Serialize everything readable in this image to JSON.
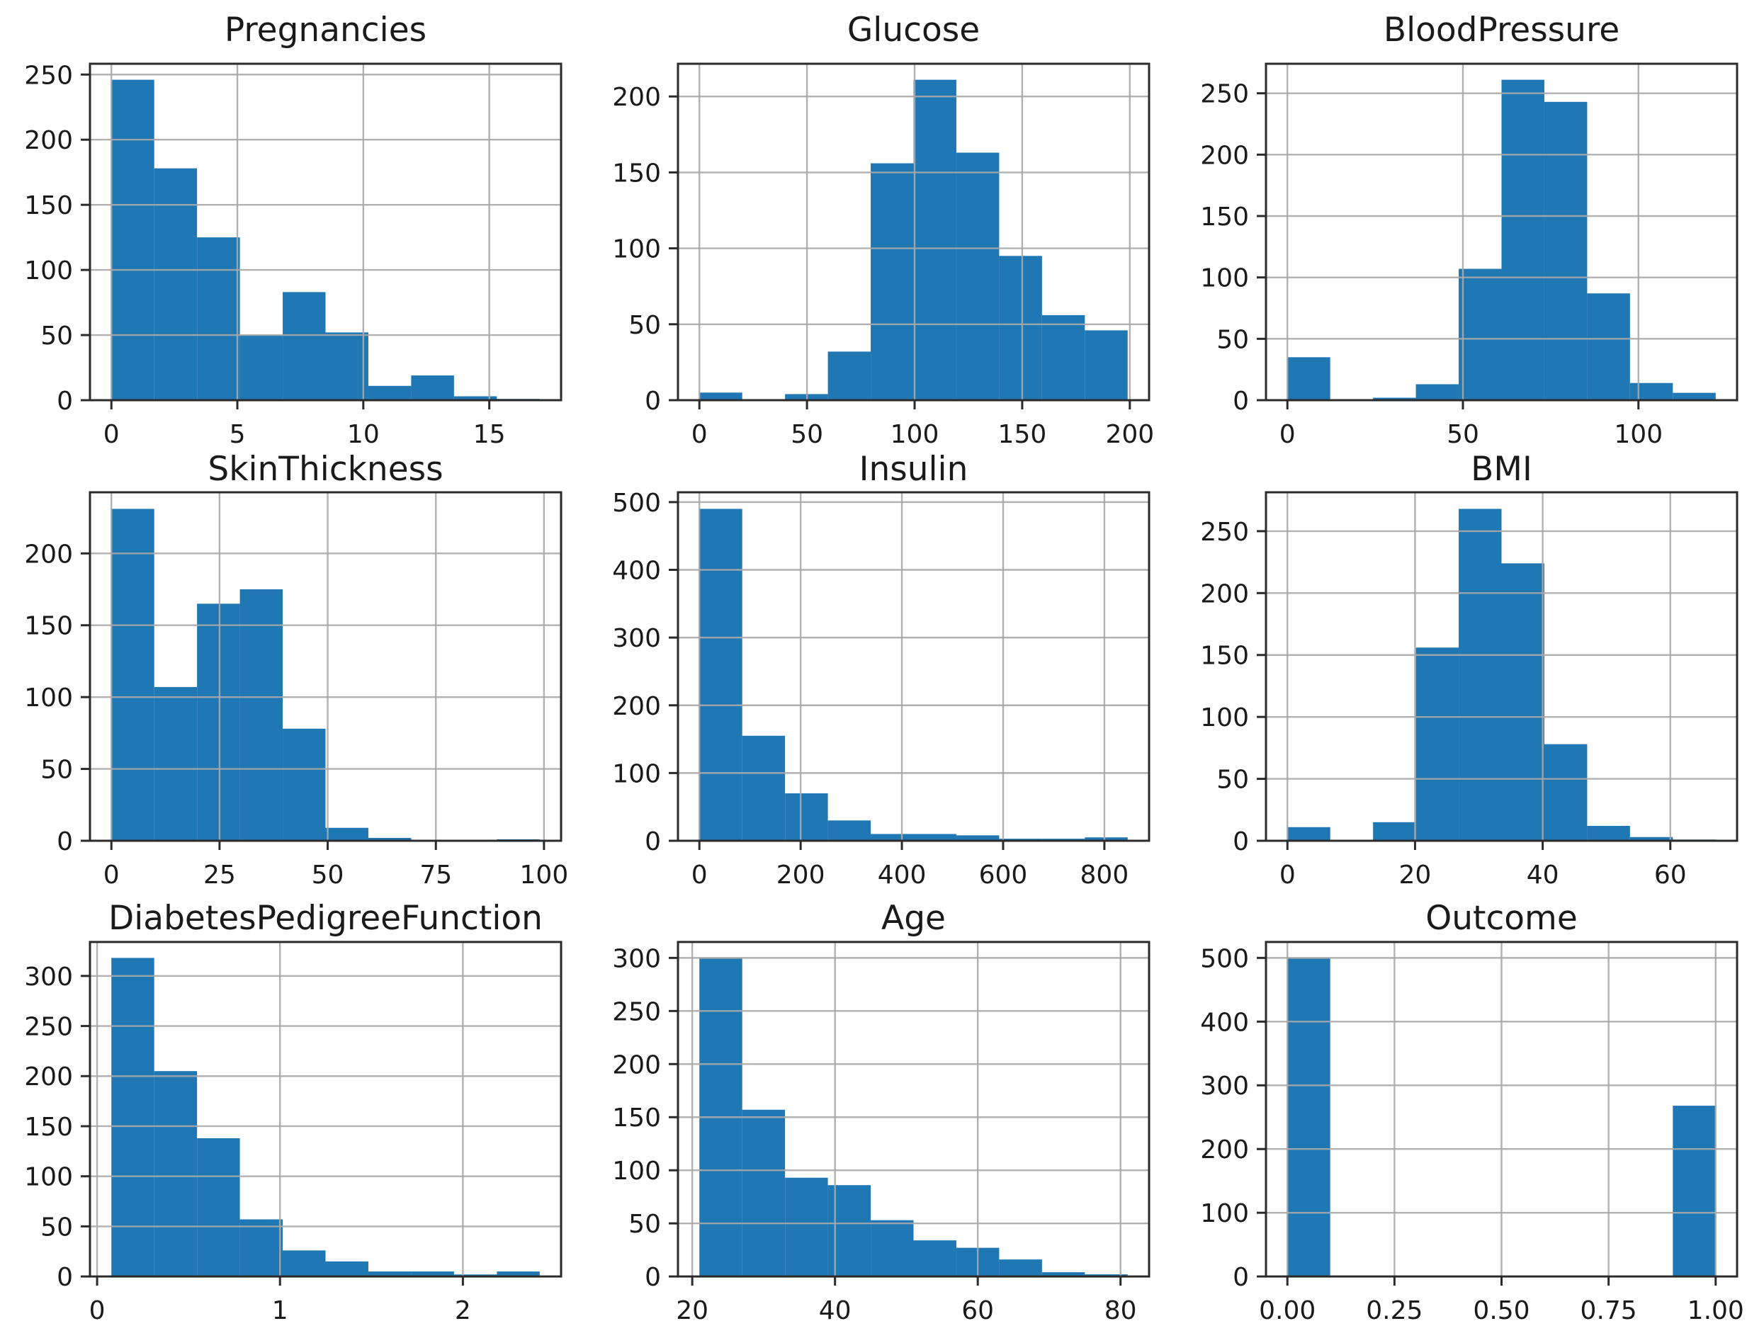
{
  "figure": {
    "background_color": "#ffffff",
    "bar_color": "#1f77b4",
    "grid_color": "#a9a9a9",
    "spine_color": "#2b2b2b",
    "text_color": "#1a1a1a",
    "grid_on": true,
    "layout": "3x3 histogram grid"
  },
  "chart_data": [
    {
      "type": "bar",
      "subtype": "histogram",
      "title": "Pregnancies",
      "bin_start": 0,
      "bin_width": 1.7,
      "counts": [
        246,
        178,
        125,
        50,
        83,
        52,
        11,
        19,
        3,
        1
      ],
      "x_ticks": [
        0,
        5,
        10,
        15
      ],
      "x_tick_labels": [
        "0",
        "5",
        "10",
        "15"
      ],
      "y_ticks": [
        0,
        50,
        100,
        150,
        200,
        250
      ],
      "xlim": [
        -0.85,
        17.85
      ],
      "ylim": [
        0,
        258.3
      ]
    },
    {
      "type": "bar",
      "subtype": "histogram",
      "title": "Glucose",
      "bin_start": 0,
      "bin_width": 19.9,
      "counts": [
        5,
        0,
        4,
        32,
        156,
        211,
        163,
        95,
        56,
        46
      ],
      "x_ticks": [
        0,
        50,
        100,
        150,
        200
      ],
      "x_tick_labels": [
        "0",
        "50",
        "100",
        "150",
        "200"
      ],
      "y_ticks": [
        0,
        50,
        100,
        150,
        200
      ],
      "xlim": [
        -9.95,
        208.95
      ],
      "ylim": [
        0,
        221.55
      ]
    },
    {
      "type": "bar",
      "subtype": "histogram",
      "title": "BloodPressure",
      "bin_start": 0,
      "bin_width": 12.2,
      "counts": [
        35,
        0,
        2,
        13,
        107,
        261,
        243,
        87,
        14,
        6
      ],
      "x_ticks": [
        0,
        50,
        100
      ],
      "x_tick_labels": [
        "0",
        "50",
        "100"
      ],
      "y_ticks": [
        0,
        50,
        100,
        150,
        200,
        250
      ],
      "xlim": [
        -6.1,
        128.1
      ],
      "ylim": [
        0,
        274.05
      ]
    },
    {
      "type": "bar",
      "subtype": "histogram",
      "title": "SkinThickness",
      "bin_start": 0,
      "bin_width": 9.9,
      "counts": [
        231,
        107,
        165,
        175,
        78,
        9,
        2,
        0,
        0,
        1
      ],
      "x_ticks": [
        0,
        25,
        50,
        75,
        100
      ],
      "x_tick_labels": [
        "0",
        "25",
        "50",
        "75",
        "100"
      ],
      "y_ticks": [
        0,
        50,
        100,
        150,
        200
      ],
      "xlim": [
        -4.95,
        103.95
      ],
      "ylim": [
        0,
        242.55
      ]
    },
    {
      "type": "bar",
      "subtype": "histogram",
      "title": "Insulin",
      "bin_start": 0,
      "bin_width": 84.6,
      "counts": [
        490,
        155,
        70,
        30,
        10,
        10,
        8,
        3,
        3,
        5
      ],
      "x_ticks": [
        0,
        200,
        400,
        600,
        800
      ],
      "x_tick_labels": [
        "0",
        "200",
        "400",
        "600",
        "800"
      ],
      "y_ticks": [
        0,
        100,
        200,
        300,
        400,
        500
      ],
      "xlim": [
        -42.3,
        888.3
      ],
      "ylim": [
        0,
        514.5
      ]
    },
    {
      "type": "bar",
      "subtype": "histogram",
      "title": "BMI",
      "bin_start": 0,
      "bin_width": 6.71,
      "counts": [
        11,
        0,
        15,
        156,
        268,
        224,
        78,
        12,
        3,
        1
      ],
      "x_ticks": [
        0,
        20,
        40,
        60
      ],
      "x_tick_labels": [
        "0",
        "20",
        "40",
        "60"
      ],
      "y_ticks": [
        0,
        50,
        100,
        150,
        200,
        250
      ],
      "xlim": [
        -3.36,
        70.46
      ],
      "ylim": [
        0,
        281.4
      ]
    },
    {
      "type": "bar",
      "subtype": "histogram",
      "title": "DiabetesPedigreeFunction",
      "bin_start": 0.078,
      "bin_width": 0.2342,
      "counts": [
        318,
        205,
        138,
        57,
        26,
        15,
        5,
        5,
        2,
        5
      ],
      "x_ticks": [
        0,
        1,
        2
      ],
      "x_tick_labels": [
        "0",
        "1",
        "2"
      ],
      "y_ticks": [
        0,
        50,
        100,
        150,
        200,
        250,
        300
      ],
      "xlim": [
        -0.039,
        2.537
      ],
      "ylim": [
        0,
        333.9
      ]
    },
    {
      "type": "bar",
      "subtype": "histogram",
      "title": "Age",
      "bin_start": 21,
      "bin_width": 6,
      "counts": [
        300,
        157,
        93,
        86,
        53,
        34,
        27,
        16,
        4,
        2
      ],
      "x_ticks": [
        20,
        40,
        60,
        80
      ],
      "x_tick_labels": [
        "20",
        "40",
        "60",
        "80"
      ],
      "y_ticks": [
        0,
        50,
        100,
        150,
        200,
        250,
        300
      ],
      "xlim": [
        18,
        84
      ],
      "ylim": [
        0,
        315
      ]
    },
    {
      "type": "bar",
      "subtype": "histogram",
      "title": "Outcome",
      "bin_start": 0,
      "bin_width": 0.1,
      "counts": [
        500,
        0,
        0,
        0,
        0,
        0,
        0,
        0,
        0,
        268
      ],
      "x_ticks": [
        0,
        0.25,
        0.5,
        0.75,
        1
      ],
      "x_tick_labels": [
        "0.00",
        "0.25",
        "0.50",
        "0.75",
        "1.00"
      ],
      "y_ticks": [
        0,
        100,
        200,
        300,
        400,
        500
      ],
      "xlim": [
        -0.05,
        1.05
      ],
      "ylim": [
        0,
        525
      ]
    }
  ]
}
